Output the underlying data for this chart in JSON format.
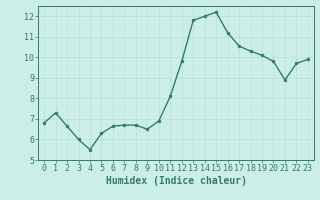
{
  "x": [
    0,
    1,
    2,
    3,
    4,
    5,
    6,
    7,
    8,
    9,
    10,
    11,
    12,
    13,
    14,
    15,
    16,
    17,
    18,
    19,
    20,
    21,
    22,
    23
  ],
  "y": [
    6.8,
    7.3,
    6.65,
    6.0,
    5.5,
    6.3,
    6.65,
    6.7,
    6.7,
    6.5,
    6.9,
    8.1,
    9.8,
    11.8,
    12.0,
    12.2,
    11.2,
    10.55,
    10.3,
    10.1,
    9.8,
    8.9,
    9.7,
    9.9
  ],
  "line_color": "#2e7d6e",
  "marker": "o",
  "marker_size": 2,
  "line_width": 1.0,
  "xlabel": "Humidex (Indice chaleur)",
  "ylim": [
    5,
    12.5
  ],
  "xlim": [
    -0.5,
    23.5
  ],
  "yticks": [
    5,
    6,
    7,
    8,
    9,
    10,
    11,
    12
  ],
  "xticks": [
    0,
    1,
    2,
    3,
    4,
    5,
    6,
    7,
    8,
    9,
    10,
    11,
    12,
    13,
    14,
    15,
    16,
    17,
    18,
    19,
    20,
    21,
    22,
    23
  ],
  "bg_color": "#cceee8",
  "grid_color": "#b8ddd7",
  "tick_label_fontsize": 6,
  "xlabel_fontsize": 7,
  "xlabel_color": "#2e7d6e",
  "axis_color": "#2e7d6e",
  "tick_color": "#2e7d6e"
}
